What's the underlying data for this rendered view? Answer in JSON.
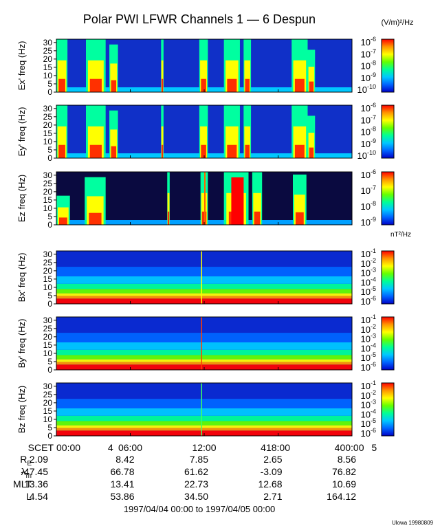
{
  "title": "Polar PWI LFWR Channels 1 — 6 Despun",
  "efield_units": "(V/m)²/Hz",
  "bfield_units": "nT²/Hz",
  "footer_left": "1997/04/04 00:00 to 1997/04/05 00:00",
  "footer_right": "Ulowa 19980809",
  "chart_data": {
    "type": "heatmap",
    "colormap": [
      "#000000",
      "#0000c8",
      "#0064ff",
      "#00c8ff",
      "#00ff96",
      "#64ff00",
      "#ffff00",
      "#ff9600",
      "#ff0000"
    ],
    "y_ticks": [
      0,
      5,
      10,
      15,
      20,
      25,
      30
    ],
    "ylim": [
      0,
      32
    ],
    "panels": [
      {
        "ylabel": "Ex' freq (Hz)",
        "colorbar_ticks": [
          {
            "m": "10",
            "e": "-6"
          },
          {
            "m": "10",
            "e": "-7"
          },
          {
            "m": "10",
            "e": "-8"
          },
          {
            "m": "10",
            "e": "-9"
          },
          {
            "m": "10",
            "e": "-10"
          }
        ]
      },
      {
        "ylabel": "Ey' freq (Hz)",
        "colorbar_ticks": [
          {
            "m": "10",
            "e": "-6"
          },
          {
            "m": "10",
            "e": "-7"
          },
          {
            "m": "10",
            "e": "-8"
          },
          {
            "m": "10",
            "e": "-9"
          },
          {
            "m": "10",
            "e": "-10"
          }
        ]
      },
      {
        "ylabel": "Ez freq (Hz)",
        "colorbar_ticks": [
          {
            "m": "10",
            "e": "-6"
          },
          {
            "m": "10",
            "e": "-7"
          },
          {
            "m": "10",
            "e": "-8"
          },
          {
            "m": "10",
            "e": "-9"
          }
        ]
      },
      {
        "ylabel": "Bx' freq (Hz)",
        "colorbar_ticks": [
          {
            "m": "10",
            "e": "-1"
          },
          {
            "m": "10",
            "e": "-2"
          },
          {
            "m": "10",
            "e": "-3"
          },
          {
            "m": "10",
            "e": "-4"
          },
          {
            "m": "10",
            "e": "-5"
          },
          {
            "m": "10",
            "e": "-6"
          }
        ]
      },
      {
        "ylabel": "By' freq (Hz)",
        "colorbar_ticks": [
          {
            "m": "10",
            "e": "-1"
          },
          {
            "m": "10",
            "e": "-2"
          },
          {
            "m": "10",
            "e": "-3"
          },
          {
            "m": "10",
            "e": "-4"
          },
          {
            "m": "10",
            "e": "-5"
          },
          {
            "m": "10",
            "e": "-6"
          }
        ]
      },
      {
        "ylabel": "Bz freq (Hz)",
        "colorbar_ticks": [
          {
            "m": "10",
            "e": "-1"
          },
          {
            "m": "10",
            "e": "-2"
          },
          {
            "m": "10",
            "e": "-3"
          },
          {
            "m": "10",
            "e": "-4"
          },
          {
            "m": "10",
            "e": "-5"
          },
          {
            "m": "10",
            "e": "-6"
          }
        ]
      }
    ],
    "x_axis": {
      "row_label": "SCET",
      "ticks": [
        {
          "hour": 0,
          "label": "00:00"
        },
        {
          "hour": 6,
          "label": "06:00"
        },
        {
          "hour": 12,
          "label": "12:00"
        },
        {
          "hour": 18,
          "label": "18:00"
        },
        {
          "hour": 24,
          "label": "00:00"
        }
      ],
      "day_labels": [
        {
          "hour": 4.4,
          "text": "4"
        },
        {
          "hour": 16.8,
          "text": "4"
        },
        {
          "hour": 22.8,
          "text": "4"
        },
        {
          "hour": 25.8,
          "text": "5"
        }
      ]
    },
    "ephemeris": [
      {
        "label": "R",
        "sub": "E",
        "values": [
          "2.09",
          "8.42",
          "7.85",
          "2.65",
          "8.56"
        ]
      },
      {
        "label": "λ",
        "sub": "m",
        "values": [
          "-47.45",
          "66.78",
          "61.62",
          "-3.09",
          "76.82"
        ]
      },
      {
        "label": "MLT",
        "sub": "",
        "values": [
          "13.36",
          "13.41",
          "22.73",
          "12.68",
          "10.69"
        ]
      },
      {
        "label": "L",
        "sub": "",
        "values": [
          "4.54",
          "53.86",
          "34.50",
          "2.71",
          "164.12"
        ]
      }
    ]
  }
}
